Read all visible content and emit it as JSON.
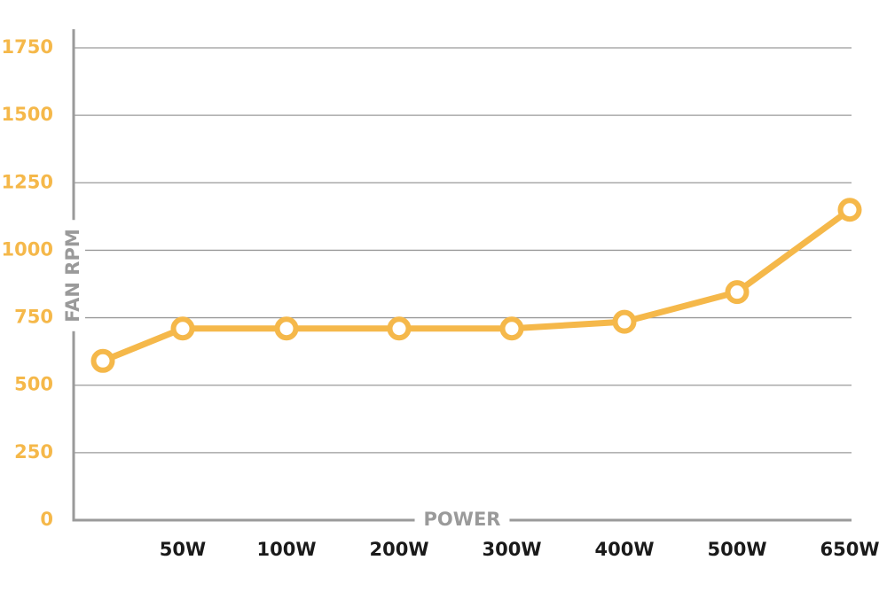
{
  "chart_data": {
    "type": "line",
    "xlabel": "POWER",
    "ylabel": "FAN RPM",
    "categories": [
      "",
      "50W",
      "100W",
      "200W",
      "300W",
      "400W",
      "500W",
      "650W"
    ],
    "series": [
      {
        "values": [
          590,
          710,
          710,
          710,
          710,
          735,
          845,
          1150
        ]
      }
    ],
    "ylim": [
      0,
      1750
    ],
    "yticks": [
      "0",
      "250",
      "500",
      "750",
      "1000",
      "1250",
      "1500",
      "1750"
    ],
    "grid": true,
    "colors": {
      "line": "#F5B84A",
      "ytick": "#F5B84A",
      "axis": "#9a9a9a",
      "grid": "#9a9a9a",
      "xtick": "#1a1a1a"
    }
  }
}
